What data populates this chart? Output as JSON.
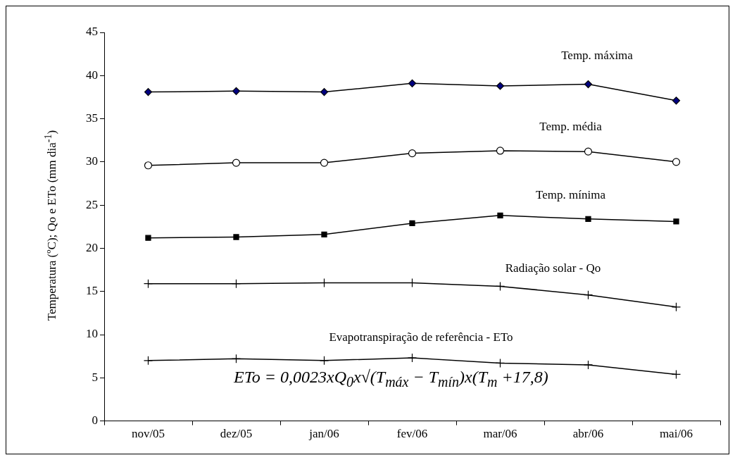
{
  "chart_data": {
    "type": "line",
    "ylabel": "Temperatura (ºC); Qo e  ETo (mm dia$^{-1}$)",
    "categories": [
      "nov/05",
      "dez/05",
      "jan/06",
      "fev/06",
      "mar/06",
      "abr/06",
      "mai/06"
    ],
    "series": [
      {
        "name": "Temp. máxima",
        "color": "#000080",
        "marker": "diamond",
        "values": [
          38.1,
          38.2,
          38.1,
          39.1,
          38.8,
          39.0,
          37.1
        ]
      },
      {
        "name": "Temp. média",
        "color": "#ffffff",
        "marker": "circle",
        "values": [
          29.6,
          29.9,
          29.9,
          31.0,
          31.3,
          31.2,
          30.0
        ]
      },
      {
        "name": "Temp. mínima",
        "color": "#000000",
        "marker": "square",
        "values": [
          21.2,
          21.3,
          21.6,
          22.9,
          23.8,
          23.4,
          23.1
        ]
      },
      {
        "name": "Radiação solar - Qo",
        "color": "#000000",
        "marker": "cross",
        "values": [
          15.9,
          15.9,
          16.0,
          16.0,
          15.6,
          14.6,
          13.2
        ]
      },
      {
        "name": "Evapotranspiração de referência - ETo",
        "color": "#000000",
        "marker": "cross",
        "values": [
          7.0,
          7.2,
          7.0,
          7.3,
          6.7,
          6.5,
          5.4
        ]
      }
    ],
    "annotations": [
      "ETo = 0,0023xQ$_{0}$x√(T$_{máx}$ − T$_{mín}$)x(T$_{m}$ +17,8)"
    ],
    "ylim": [
      0,
      45
    ],
    "yticks": [
      0,
      5,
      10,
      15,
      20,
      25,
      30,
      35,
      40,
      45
    ],
    "grid": false,
    "legend": false,
    "line_style": "solid"
  }
}
